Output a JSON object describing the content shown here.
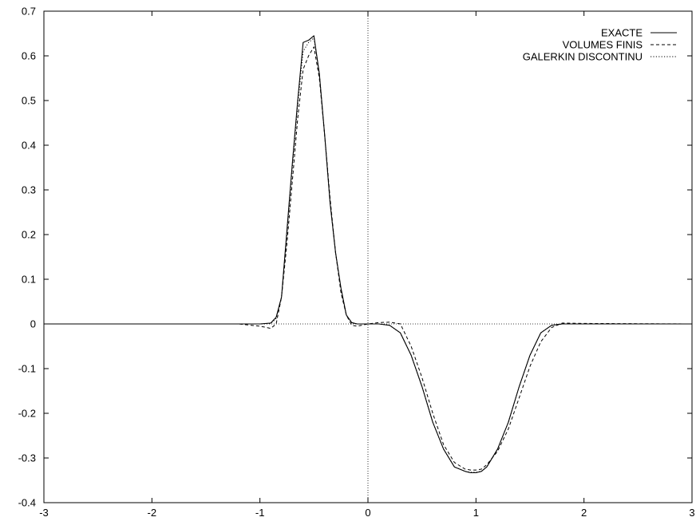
{
  "chart_data": {
    "type": "line",
    "title": "",
    "xlabel": "",
    "ylabel": "",
    "xlim": [
      -3,
      3
    ],
    "ylim": [
      -0.4,
      0.7
    ],
    "x_ticks": [
      -3,
      -2,
      -1,
      0,
      1,
      2,
      3
    ],
    "x_tick_labels": [
      "-3",
      "-2",
      "-1",
      "0",
      "1",
      "2",
      "3"
    ],
    "y_ticks": [
      -0.4,
      -0.3,
      -0.2,
      -0.1,
      0,
      0.1,
      0.2,
      0.3,
      0.4,
      0.5,
      0.6,
      0.7
    ],
    "y_tick_labels": [
      "-0.4",
      "-0.3",
      "-0.2",
      "-0.1",
      "0",
      "0.1",
      "0.2",
      "0.3",
      "0.4",
      "0.5",
      "0.6",
      "0.7"
    ],
    "grid": false,
    "zero_axes": true,
    "legend_position": "top-right",
    "series": [
      {
        "name": "EXACTE",
        "style": "solid",
        "x": [
          -3,
          -1.2,
          -1.0,
          -0.9,
          -0.85,
          -0.8,
          -0.75,
          -0.7,
          -0.65,
          -0.6,
          -0.55,
          -0.5,
          -0.45,
          -0.4,
          -0.35,
          -0.3,
          -0.25,
          -0.2,
          -0.15,
          -0.1,
          0,
          0.1,
          0.2,
          0.3,
          0.4,
          0.5,
          0.6,
          0.7,
          0.8,
          0.9,
          0.95,
          1.0,
          1.05,
          1.1,
          1.2,
          1.3,
          1.4,
          1.5,
          1.6,
          1.7,
          1.8,
          2.0,
          3.0
        ],
        "y": [
          0,
          0,
          0,
          0.002,
          0.015,
          0.06,
          0.21,
          0.36,
          0.5,
          0.63,
          0.635,
          0.645,
          0.56,
          0.42,
          0.27,
          0.16,
          0.08,
          0.02,
          0.003,
          0,
          0,
          0,
          -0.003,
          -0.02,
          -0.07,
          -0.14,
          -0.22,
          -0.28,
          -0.32,
          -0.33,
          -0.333,
          -0.333,
          -0.33,
          -0.32,
          -0.28,
          -0.22,
          -0.14,
          -0.07,
          -0.02,
          -0.003,
          0,
          0,
          0
        ]
      },
      {
        "name": "VOLUMES FINIS",
        "style": "dashed",
        "x": [
          -3,
          -1.2,
          -1.0,
          -0.9,
          -0.85,
          -0.8,
          -0.75,
          -0.7,
          -0.65,
          -0.6,
          -0.55,
          -0.5,
          -0.45,
          -0.4,
          -0.35,
          -0.3,
          -0.25,
          -0.2,
          -0.15,
          -0.1,
          0,
          0.1,
          0.2,
          0.3,
          0.4,
          0.5,
          0.6,
          0.7,
          0.8,
          0.9,
          0.95,
          1.0,
          1.05,
          1.1,
          1.2,
          1.3,
          1.4,
          1.5,
          1.6,
          1.7,
          1.8,
          2.0,
          3.0
        ],
        "y": [
          0,
          0,
          -0.005,
          -0.01,
          0.0,
          0.06,
          0.18,
          0.32,
          0.46,
          0.57,
          0.6,
          0.62,
          0.55,
          0.42,
          0.28,
          0.16,
          0.07,
          0.02,
          -0.003,
          -0.005,
          0,
          0.003,
          0.004,
          0.0,
          -0.05,
          -0.12,
          -0.2,
          -0.27,
          -0.31,
          -0.325,
          -0.327,
          -0.327,
          -0.325,
          -0.315,
          -0.285,
          -0.235,
          -0.165,
          -0.095,
          -0.04,
          -0.008,
          0.002,
          0.001,
          0
        ]
      },
      {
        "name": "GALERKIN DISCONTINU",
        "style": "dotted",
        "x": [
          -3,
          -1.2,
          -1.0,
          -0.9,
          -0.85,
          -0.8,
          -0.75,
          -0.7,
          -0.65,
          -0.6,
          -0.55,
          -0.5,
          -0.45,
          -0.4,
          -0.35,
          -0.3,
          -0.25,
          -0.2,
          -0.15,
          -0.1,
          0,
          0.1,
          0.2,
          0.3,
          0.4,
          0.5,
          0.6,
          0.7,
          0.8,
          0.9,
          0.95,
          1.0,
          1.05,
          1.1,
          1.2,
          1.3,
          1.4,
          1.5,
          1.6,
          1.7,
          1.8,
          2.0,
          3.0
        ],
        "y": [
          0,
          0,
          0,
          0.001,
          0.012,
          0.06,
          0.2,
          0.35,
          0.49,
          0.61,
          0.63,
          0.64,
          0.56,
          0.42,
          0.27,
          0.16,
          0.08,
          0.02,
          0.002,
          0,
          0,
          0,
          -0.003,
          -0.02,
          -0.07,
          -0.14,
          -0.22,
          -0.28,
          -0.32,
          -0.33,
          -0.332,
          -0.332,
          -0.33,
          -0.32,
          -0.28,
          -0.22,
          -0.14,
          -0.07,
          -0.02,
          -0.003,
          0,
          0,
          0
        ]
      }
    ]
  }
}
